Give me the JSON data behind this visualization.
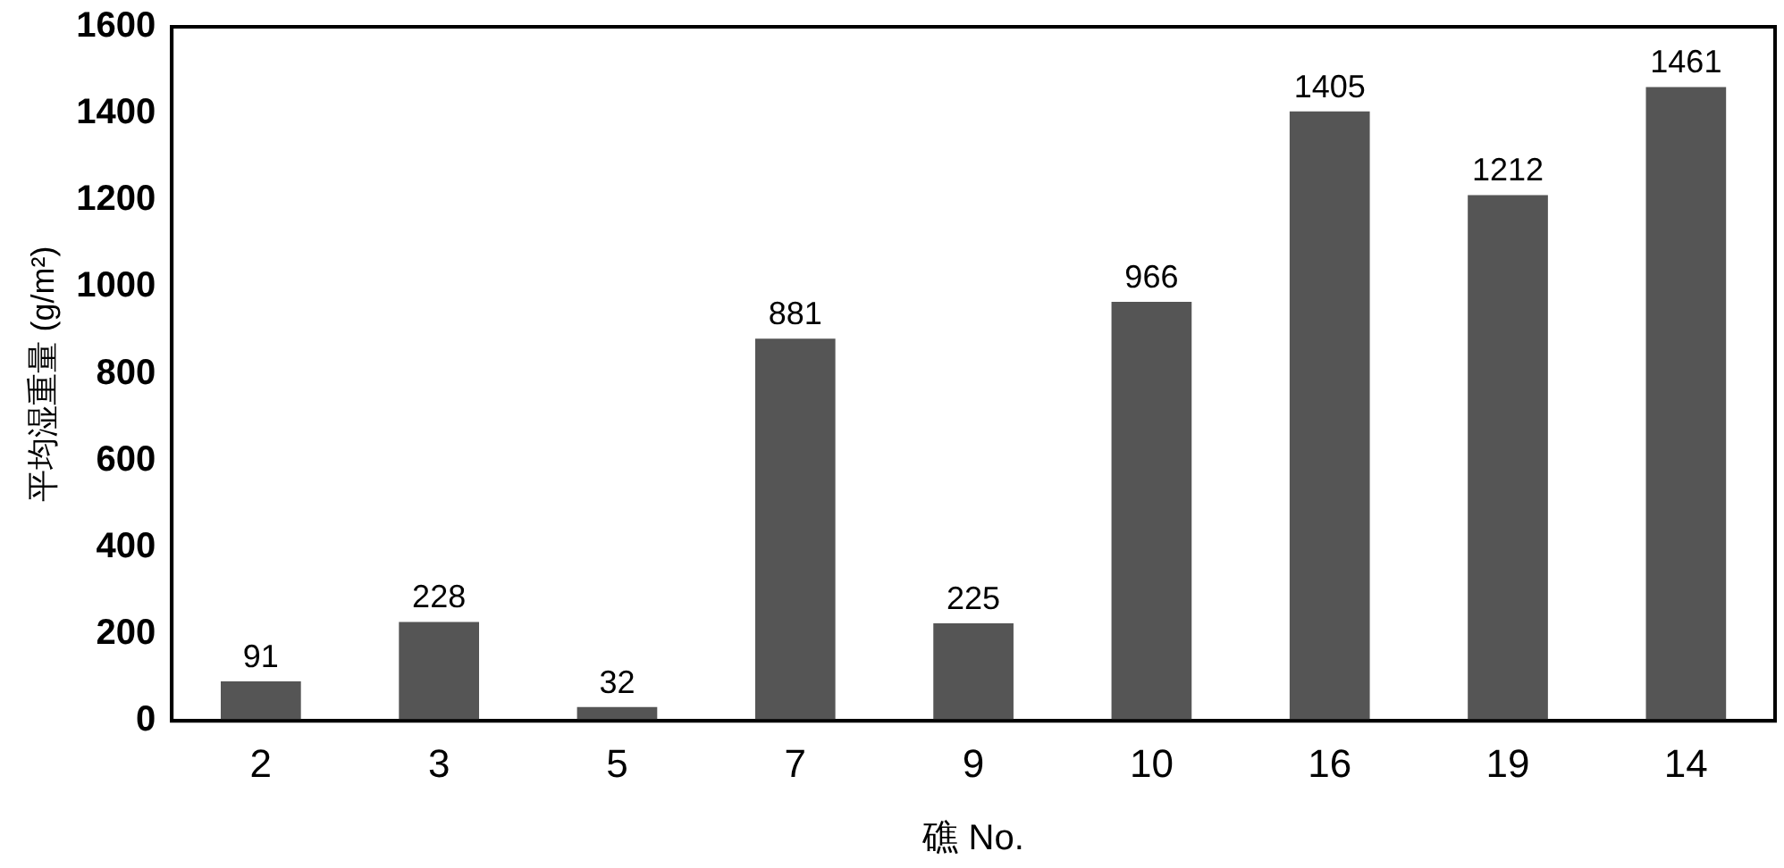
{
  "chart_data": {
    "type": "bar",
    "xlabel": "礁 No.",
    "ylabel": "平均湿重量 (g/m²)",
    "categories": [
      "2",
      "3",
      "5",
      "7",
      "9",
      "10",
      "16",
      "19",
      "14"
    ],
    "values": [
      91,
      228,
      32,
      881,
      225,
      966,
      1405,
      1212,
      1461
    ],
    "color": "#555555",
    "ylim": [
      0,
      1600
    ],
    "yticks": [
      0,
      200,
      400,
      600,
      800,
      1000,
      1200,
      1400,
      1600
    ],
    "grid": false,
    "data_labels": true
  }
}
